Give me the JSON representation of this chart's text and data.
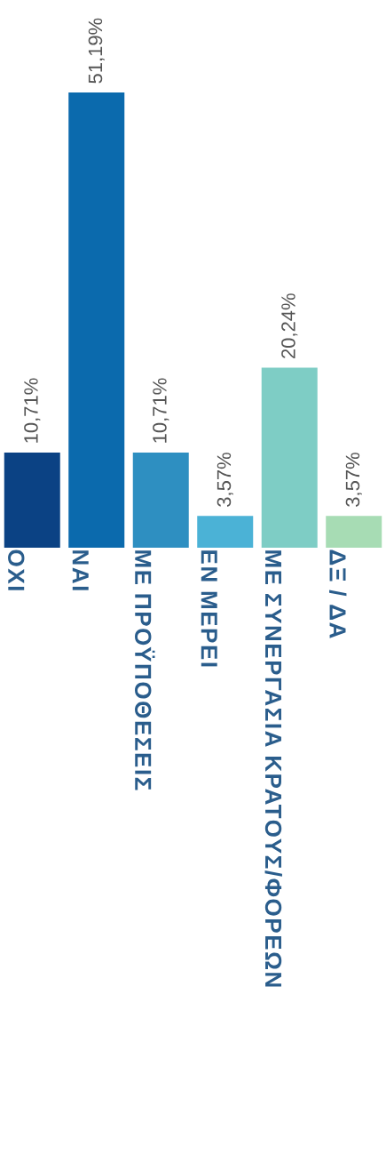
{
  "chart_data": {
    "type": "bar",
    "categories": [
      "ΟΧΙ",
      "ΝΑΙ",
      "ΜΕ ΠΡΟΫΠΟΘΕΣΕΙΣ",
      "ΕΝ ΜΕΡΕΙ",
      "ΜΕ ΣΥΝΕΡΓΑΣΙΑ ΚΡΑΤΟΥΣ/ΦΟΡΕΩΝ",
      "ΔΞ / ΔΑ"
    ],
    "values": [
      10.71,
      51.19,
      10.71,
      3.57,
      20.24,
      3.57
    ],
    "value_labels": [
      "10,71%",
      "51,19%",
      "10,71%",
      "3,57%",
      "20,24%",
      "3,57%"
    ],
    "colors": [
      "#0b4284",
      "#0b6aad",
      "#2e8fc1",
      "#4bb2d6",
      "#7ecdc5",
      "#a7dcb4"
    ]
  }
}
